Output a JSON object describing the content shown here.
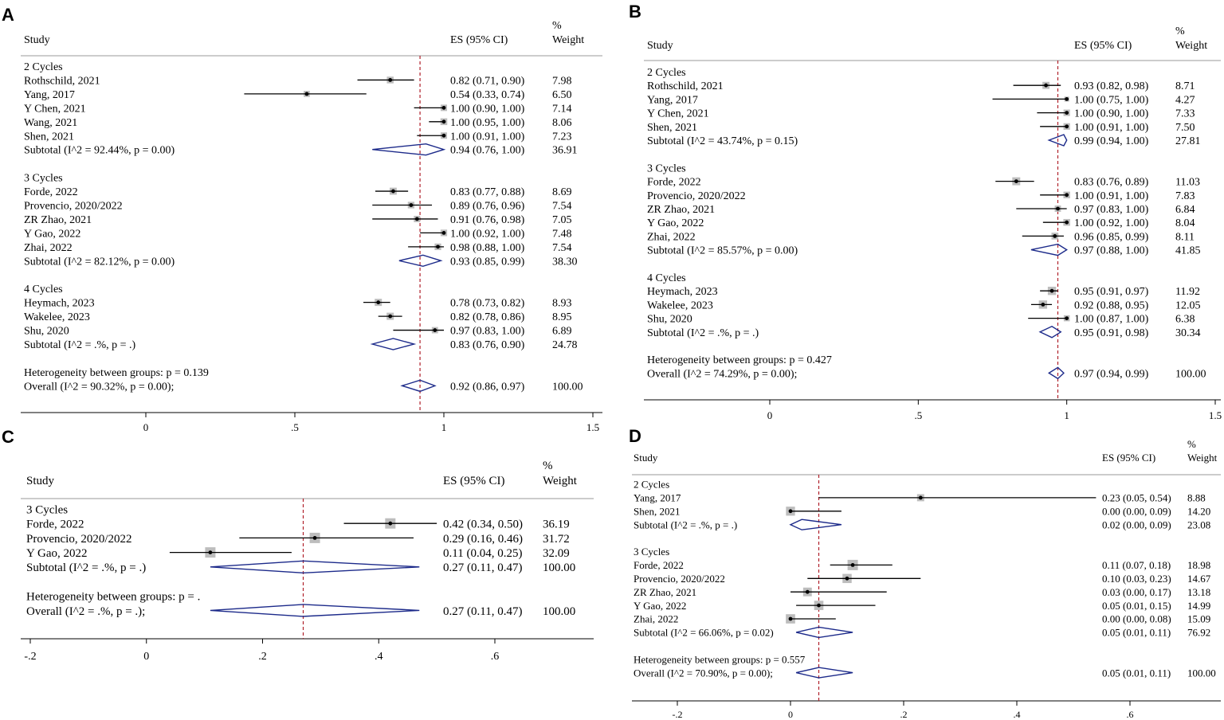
{
  "figure": {
    "panel_letters": [
      "A",
      "B",
      "C",
      "D"
    ]
  },
  "chart_data": [
    {
      "panel": "A",
      "type": "forest",
      "header": {
        "study": "Study",
        "es": "ES (95% CI)",
        "weight_line1": "%",
        "weight_line2": "Weight"
      },
      "x_ticks": [
        {
          "value": 0,
          "label": "0"
        },
        {
          "value": 0.5,
          "label": ".5"
        },
        {
          "value": 1,
          "label": "1"
        },
        {
          "value": 1.5,
          "label": "1.5"
        }
      ],
      "overall_line_value": 0.92,
      "rows": [
        {
          "kind": "group",
          "label": "2 Cycles"
        },
        {
          "kind": "study",
          "label": "Rothschild, 2021",
          "es": 0.82,
          "lo": 0.71,
          "hi": 0.9,
          "ci_text": "0.82 (0.71, 0.90)",
          "weight": "7.98"
        },
        {
          "kind": "study",
          "label": "Yang, 2017",
          "es": 0.54,
          "lo": 0.33,
          "hi": 0.74,
          "ci_text": "0.54 (0.33, 0.74)",
          "weight": "6.50"
        },
        {
          "kind": "study",
          "label": "Y Chen, 2021",
          "es": 1.0,
          "lo": 0.9,
          "hi": 1.0,
          "ci_text": "1.00 (0.90, 1.00)",
          "weight": "7.14"
        },
        {
          "kind": "study",
          "label": "Wang, 2021",
          "es": 1.0,
          "lo": 0.95,
          "hi": 1.0,
          "ci_text": "1.00 (0.95, 1.00)",
          "weight": "8.06"
        },
        {
          "kind": "study",
          "label": "Shen, 2021",
          "es": 1.0,
          "lo": 0.91,
          "hi": 1.0,
          "ci_text": "1.00 (0.91, 1.00)",
          "weight": "7.23"
        },
        {
          "kind": "subtotal",
          "label": "Subtotal  (I^2 = 92.44%, p = 0.00)",
          "es": 0.94,
          "lo": 0.76,
          "hi": 1.0,
          "ci_text": "0.94 (0.76, 1.00)",
          "weight": "36.91"
        },
        {
          "kind": "spacer"
        },
        {
          "kind": "group",
          "label": "3 Cycles"
        },
        {
          "kind": "study",
          "label": "Forde, 2022",
          "es": 0.83,
          "lo": 0.77,
          "hi": 0.88,
          "ci_text": "0.83 (0.77, 0.88)",
          "weight": "8.69"
        },
        {
          "kind": "study",
          "label": "Provencio, 2020/2022",
          "es": 0.89,
          "lo": 0.76,
          "hi": 0.96,
          "ci_text": "0.89 (0.76, 0.96)",
          "weight": "7.54"
        },
        {
          "kind": "study",
          "label": "ZR Zhao, 2021",
          "es": 0.91,
          "lo": 0.76,
          "hi": 0.98,
          "ci_text": "0.91 (0.76, 0.98)",
          "weight": "7.05"
        },
        {
          "kind": "study",
          "label": "Y Gao, 2022",
          "es": 1.0,
          "lo": 0.92,
          "hi": 1.0,
          "ci_text": "1.00 (0.92, 1.00)",
          "weight": "7.48"
        },
        {
          "kind": "study",
          "label": "Zhai, 2022",
          "es": 0.98,
          "lo": 0.88,
          "hi": 1.0,
          "ci_text": "0.98 (0.88, 1.00)",
          "weight": "7.54"
        },
        {
          "kind": "subtotal",
          "label": "Subtotal  (I^2 = 82.12%, p = 0.00)",
          "es": 0.93,
          "lo": 0.85,
          "hi": 0.99,
          "ci_text": "0.93 (0.85, 0.99)",
          "weight": "38.30"
        },
        {
          "kind": "spacer"
        },
        {
          "kind": "group",
          "label": "4 Cycles"
        },
        {
          "kind": "study",
          "label": "Heymach, 2023",
          "es": 0.78,
          "lo": 0.73,
          "hi": 0.82,
          "ci_text": "0.78 (0.73, 0.82)",
          "weight": "8.93"
        },
        {
          "kind": "study",
          "label": "Wakelee, 2023",
          "es": 0.82,
          "lo": 0.78,
          "hi": 0.86,
          "ci_text": "0.82 (0.78, 0.86)",
          "weight": "8.95"
        },
        {
          "kind": "study",
          "label": "Shu, 2020",
          "es": 0.97,
          "lo": 0.83,
          "hi": 1.0,
          "ci_text": "0.97 (0.83, 1.00)",
          "weight": "6.89"
        },
        {
          "kind": "subtotal",
          "label": "Subtotal  (I^2 = .%, p = .)",
          "es": 0.83,
          "lo": 0.76,
          "hi": 0.9,
          "ci_text": "0.83 (0.76, 0.90)",
          "weight": "24.78"
        },
        {
          "kind": "spacer"
        },
        {
          "kind": "text",
          "label": "Heterogeneity between groups: p = 0.139"
        },
        {
          "kind": "overall",
          "label": "Overall  (I^2 = 90.32%, p = 0.00);",
          "es": 0.92,
          "lo": 0.86,
          "hi": 0.97,
          "ci_text": "0.92 (0.86, 0.97)",
          "weight": "100.00"
        }
      ]
    },
    {
      "panel": "B",
      "type": "forest",
      "header": {
        "study": "Study",
        "es": "ES (95% CI)",
        "weight_line1": "%",
        "weight_line2": "Weight"
      },
      "x_ticks": [
        {
          "value": 0,
          "label": "0"
        },
        {
          "value": 0.5,
          "label": ".5"
        },
        {
          "value": 1,
          "label": "1"
        },
        {
          "value": 1.5,
          "label": "1.5"
        }
      ],
      "overall_line_value": 0.97,
      "rows": [
        {
          "kind": "group",
          "label": "2 Cycles"
        },
        {
          "kind": "study",
          "label": "Rothschild, 2021",
          "es": 0.93,
          "lo": 0.82,
          "hi": 0.98,
          "ci_text": "0.93 (0.82, 0.98)",
          "weight": "8.71"
        },
        {
          "kind": "study",
          "label": "Yang, 2017",
          "es": 1.0,
          "lo": 0.75,
          "hi": 1.0,
          "ci_text": "1.00 (0.75, 1.00)",
          "weight": "4.27"
        },
        {
          "kind": "study",
          "label": "Y Chen, 2021",
          "es": 1.0,
          "lo": 0.9,
          "hi": 1.0,
          "ci_text": "1.00 (0.90, 1.00)",
          "weight": "7.33"
        },
        {
          "kind": "study",
          "label": "Shen, 2021",
          "es": 1.0,
          "lo": 0.91,
          "hi": 1.0,
          "ci_text": "1.00 (0.91, 1.00)",
          "weight": "7.50"
        },
        {
          "kind": "subtotal",
          "label": "Subtotal  (I^2 = 43.74%, p = 0.15)",
          "es": 0.99,
          "lo": 0.94,
          "hi": 1.0,
          "ci_text": "0.99 (0.94, 1.00)",
          "weight": "27.81"
        },
        {
          "kind": "spacer"
        },
        {
          "kind": "group",
          "label": "3 Cycles"
        },
        {
          "kind": "study",
          "label": "Forde, 2022",
          "es": 0.83,
          "lo": 0.76,
          "hi": 0.89,
          "ci_text": "0.83 (0.76, 0.89)",
          "weight": "11.03"
        },
        {
          "kind": "study",
          "label": "Provencio, 2020/2022",
          "es": 1.0,
          "lo": 0.91,
          "hi": 1.0,
          "ci_text": "1.00 (0.91, 1.00)",
          "weight": "7.83"
        },
        {
          "kind": "study",
          "label": "ZR Zhao, 2021",
          "es": 0.97,
          "lo": 0.83,
          "hi": 1.0,
          "ci_text": "0.97 (0.83, 1.00)",
          "weight": "6.84"
        },
        {
          "kind": "study",
          "label": "Y Gao, 2022",
          "es": 1.0,
          "lo": 0.92,
          "hi": 1.0,
          "ci_text": "1.00 (0.92, 1.00)",
          "weight": "8.04"
        },
        {
          "kind": "study",
          "label": "Zhai, 2022",
          "es": 0.96,
          "lo": 0.85,
          "hi": 0.99,
          "ci_text": "0.96 (0.85, 0.99)",
          "weight": "8.11"
        },
        {
          "kind": "subtotal",
          "label": "Subtotal  (I^2 = 85.57%, p = 0.00)",
          "es": 0.97,
          "lo": 0.88,
          "hi": 1.0,
          "ci_text": "0.97 (0.88, 1.00)",
          "weight": "41.85"
        },
        {
          "kind": "spacer"
        },
        {
          "kind": "group",
          "label": "4 Cycles"
        },
        {
          "kind": "study",
          "label": "Heymach, 2023",
          "es": 0.95,
          "lo": 0.91,
          "hi": 0.97,
          "ci_text": "0.95 (0.91, 0.97)",
          "weight": "11.92"
        },
        {
          "kind": "study",
          "label": "Wakelee, 2023",
          "es": 0.92,
          "lo": 0.88,
          "hi": 0.95,
          "ci_text": "0.92 (0.88, 0.95)",
          "weight": "12.05"
        },
        {
          "kind": "study",
          "label": "Shu, 2020",
          "es": 1.0,
          "lo": 0.87,
          "hi": 1.0,
          "ci_text": "1.00 (0.87, 1.00)",
          "weight": "6.38"
        },
        {
          "kind": "subtotal",
          "label": "Subtotal  (I^2 = .%, p = .)",
          "es": 0.95,
          "lo": 0.91,
          "hi": 0.98,
          "ci_text": "0.95 (0.91, 0.98)",
          "weight": "30.34"
        },
        {
          "kind": "spacer"
        },
        {
          "kind": "text",
          "label": "Heterogeneity between groups: p = 0.427"
        },
        {
          "kind": "overall",
          "label": "Overall  (I^2 = 74.29%, p = 0.00);",
          "es": 0.97,
          "lo": 0.94,
          "hi": 0.99,
          "ci_text": "0.97 (0.94, 0.99)",
          "weight": "100.00"
        }
      ]
    },
    {
      "panel": "C",
      "type": "forest",
      "header": {
        "study": "Study",
        "es": "ES (95% CI)",
        "weight_line1": "%",
        "weight_line2": "Weight"
      },
      "x_ticks": [
        {
          "value": -0.2,
          "label": "-.2"
        },
        {
          "value": 0,
          "label": "0"
        },
        {
          "value": 0.2,
          "label": ".2"
        },
        {
          "value": 0.4,
          "label": ".4"
        },
        {
          "value": 0.6,
          "label": ".6"
        }
      ],
      "overall_line_value": 0.27,
      "rows": [
        {
          "kind": "group",
          "label": "3 Cycles"
        },
        {
          "kind": "study",
          "label": "Forde, 2022",
          "es": 0.42,
          "lo": 0.34,
          "hi": 0.5,
          "ci_text": "0.42 (0.34, 0.50)",
          "weight": "36.19"
        },
        {
          "kind": "study",
          "label": "Provencio, 2020/2022",
          "es": 0.29,
          "lo": 0.16,
          "hi": 0.46,
          "ci_text": "0.29 (0.16, 0.46)",
          "weight": "31.72"
        },
        {
          "kind": "study",
          "label": "Y Gao, 2022",
          "es": 0.11,
          "lo": 0.04,
          "hi": 0.25,
          "ci_text": "0.11 (0.04, 0.25)",
          "weight": "32.09"
        },
        {
          "kind": "subtotal",
          "label": "Subtotal  (I^2 = .%, p = .)",
          "es": 0.27,
          "lo": 0.11,
          "hi": 0.47,
          "ci_text": "0.27 (0.11, 0.47)",
          "weight": "100.00"
        },
        {
          "kind": "spacer"
        },
        {
          "kind": "text",
          "label": "Heterogeneity between groups: p = ."
        },
        {
          "kind": "overall",
          "label": "Overall  (I^2 = .%, p = .);",
          "es": 0.27,
          "lo": 0.11,
          "hi": 0.47,
          "ci_text": "0.27 (0.11, 0.47)",
          "weight": "100.00"
        }
      ]
    },
    {
      "panel": "D",
      "type": "forest",
      "header": {
        "study": "Study",
        "es": "ES (95% CI)",
        "weight_line1": "%",
        "weight_line2": "Weight"
      },
      "x_ticks": [
        {
          "value": -0.2,
          "label": "-.2"
        },
        {
          "value": 0,
          "label": "0"
        },
        {
          "value": 0.2,
          "label": ".2"
        },
        {
          "value": 0.4,
          "label": ".4"
        },
        {
          "value": 0.6,
          "label": ".6"
        }
      ],
      "overall_line_value": 0.05,
      "rows": [
        {
          "kind": "group",
          "label": "2 Cycles"
        },
        {
          "kind": "study",
          "label": "Yang, 2017",
          "es": 0.23,
          "lo": 0.05,
          "hi": 0.54,
          "ci_text": "0.23 (0.05, 0.54)",
          "weight": "8.88"
        },
        {
          "kind": "study",
          "label": "Shen, 2021",
          "es": 0.0,
          "lo": 0.0,
          "hi": 0.09,
          "ci_text": "0.00 (0.00, 0.09)",
          "weight": "14.20"
        },
        {
          "kind": "subtotal",
          "label": "Subtotal  (I^2 = .%, p = .)",
          "es": 0.02,
          "lo": 0.0,
          "hi": 0.09,
          "ci_text": "0.02 (0.00, 0.09)",
          "weight": "23.08"
        },
        {
          "kind": "spacer"
        },
        {
          "kind": "group",
          "label": "3 Cycles"
        },
        {
          "kind": "study",
          "label": "Forde, 2022",
          "es": 0.11,
          "lo": 0.07,
          "hi": 0.18,
          "ci_text": "0.11 (0.07, 0.18)",
          "weight": "18.98"
        },
        {
          "kind": "study",
          "label": "Provencio, 2020/2022",
          "es": 0.1,
          "lo": 0.03,
          "hi": 0.23,
          "ci_text": "0.10 (0.03, 0.23)",
          "weight": "14.67"
        },
        {
          "kind": "study",
          "label": "ZR Zhao, 2021",
          "es": 0.03,
          "lo": 0.0,
          "hi": 0.17,
          "ci_text": "0.03 (0.00, 0.17)",
          "weight": "13.18"
        },
        {
          "kind": "study",
          "label": "Y Gao, 2022",
          "es": 0.05,
          "lo": 0.01,
          "hi": 0.15,
          "ci_text": "0.05 (0.01, 0.15)",
          "weight": "14.99"
        },
        {
          "kind": "study",
          "label": "Zhai, 2022",
          "es": 0.0,
          "lo": 0.0,
          "hi": 0.08,
          "ci_text": "0.00 (0.00, 0.08)",
          "weight": "15.09"
        },
        {
          "kind": "subtotal",
          "label": "Subtotal  (I^2 = 66.06%, p = 0.02)",
          "es": 0.05,
          "lo": 0.01,
          "hi": 0.11,
          "ci_text": "0.05 (0.01, 0.11)",
          "weight": "76.92"
        },
        {
          "kind": "spacer"
        },
        {
          "kind": "text",
          "label": "Heterogeneity between groups: p = 0.557"
        },
        {
          "kind": "overall",
          "label": "Overall  (I^2 = 70.90%, p = 0.00);",
          "es": 0.05,
          "lo": 0.01,
          "hi": 0.11,
          "ci_text": "0.05 (0.01, 0.11)",
          "weight": "100.00"
        }
      ]
    }
  ]
}
